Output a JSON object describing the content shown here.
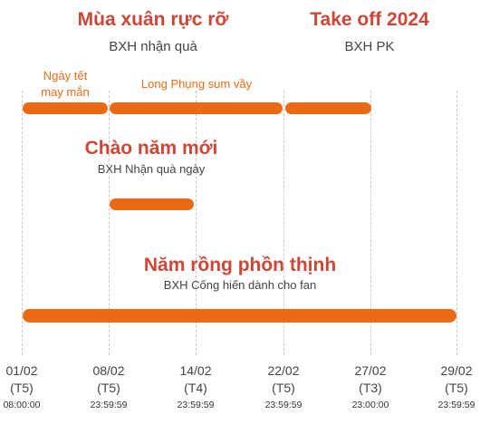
{
  "events": {
    "spring": {
      "title": "Mùa xuân rực rỡ",
      "subtitle": "BXH nhận quà"
    },
    "takeoff": {
      "title": "Take off 2024",
      "subtitle": "BXH PK"
    },
    "tet": {
      "line1": "Ngày tết",
      "line2": "may mắn"
    },
    "longphung": {
      "label": "Long Phụng sum vầy"
    },
    "newyear": {
      "title": "Chào năm mới",
      "subtitle": "BXH Nhận quà ngày"
    },
    "dragon": {
      "title": "Năm rồng phồn thịnh",
      "subtitle": "BXH Cống hiến dành cho fan"
    }
  },
  "timeline": [
    {
      "date": "01/02",
      "weekday": "(T5)",
      "time": "08:00:00"
    },
    {
      "date": "08/02",
      "weekday": "(T5)",
      "time": "23:59:59"
    },
    {
      "date": "14/02",
      "weekday": "(T4)",
      "time": "23:59:59"
    },
    {
      "date": "22/02",
      "weekday": "(T5)",
      "time": "23:59:59"
    },
    {
      "date": "27/02",
      "weekday": "(T3)",
      "time": "23:00:00"
    },
    {
      "date": "29/02",
      "weekday": "(T5)",
      "time": "23:59:59"
    }
  ],
  "colors": {
    "bar": "#ea6b14",
    "title": "#cf4636",
    "grid": "#c8c8c8"
  }
}
